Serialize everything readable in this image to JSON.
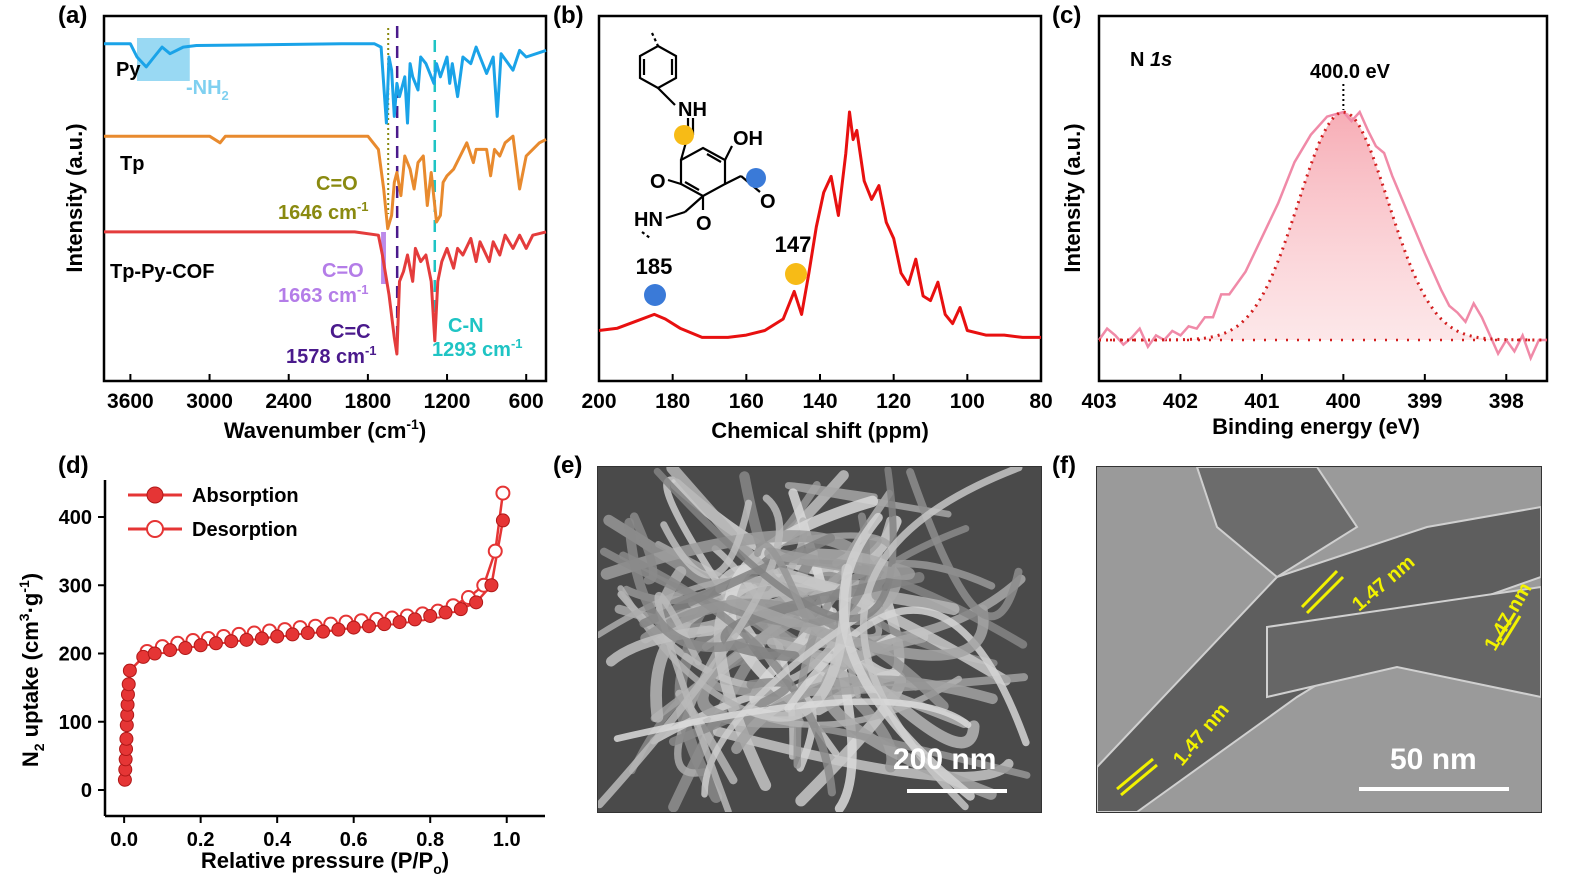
{
  "panel_labels": {
    "a": "(a)",
    "b": "(b)",
    "c": "(c)",
    "d": "(d)",
    "e": "(e)",
    "f": "(f)"
  },
  "colors": {
    "py": "#1aa3e8",
    "tp": "#e88a2e",
    "cof": "#e43c3c",
    "nmr": "#e81010",
    "xps_fit": "#f08aa8",
    "xps_dot": "#d21e1e",
    "iso": "#e53535",
    "co_tp": "#8a8a10",
    "co_cof": "#b47de8",
    "cc": "#4a1a8c",
    "cn": "#1fc4c4",
    "nh2": "#7fd0f0",
    "yellow_dot": "#f7bb16",
    "blue_dot": "#3a7ad8",
    "lattice": "#f2f200"
  },
  "chart_data": [
    {
      "panel": "a",
      "type": "line",
      "xlabel": "Wavenumber (cm",
      "xlabel_sup": "-1",
      "xlabel_end": ")",
      "ylabel": "Intensity (a.u.)",
      "xlim": [
        3800,
        450
      ],
      "xticks": [
        3600,
        3000,
        2400,
        1800,
        1200,
        600
      ],
      "series": [
        {
          "name": "Py",
          "points": [
            [
              3800,
              0.06
            ],
            [
              3600,
              0.06
            ],
            [
              3550,
              0.1
            ],
            [
              3480,
              0.13
            ],
            [
              3420,
              0.1
            ],
            [
              3360,
              0.07
            ],
            [
              3300,
              0.09
            ],
            [
              3200,
              0.07
            ],
            [
              3100,
              0.065
            ],
            [
              2000,
              0.06
            ],
            [
              1750,
              0.06
            ],
            [
              1700,
              0.07
            ],
            [
              1660,
              0.3
            ],
            [
              1640,
              0.1
            ],
            [
              1620,
              0.14
            ],
            [
              1600,
              0.28
            ],
            [
              1580,
              0.18
            ],
            [
              1560,
              0.22
            ],
            [
              1520,
              0.16
            ],
            [
              1500,
              0.3
            ],
            [
              1480,
              0.12
            ],
            [
              1460,
              0.16
            ],
            [
              1420,
              0.2
            ],
            [
              1400,
              0.1
            ],
            [
              1360,
              0.12
            ],
            [
              1300,
              0.18
            ],
            [
              1280,
              0.12
            ],
            [
              1250,
              0.16
            ],
            [
              1200,
              0.1
            ],
            [
              1180,
              0.18
            ],
            [
              1160,
              0.12
            ],
            [
              1120,
              0.22
            ],
            [
              1080,
              0.1
            ],
            [
              1020,
              0.12
            ],
            [
              980,
              0.07
            ],
            [
              900,
              0.15
            ],
            [
              850,
              0.1
            ],
            [
              820,
              0.28
            ],
            [
              790,
              0.09
            ],
            [
              700,
              0.14
            ],
            [
              650,
              0.08
            ],
            [
              600,
              0.1
            ],
            [
              450,
              0.08
            ]
          ]
        },
        {
          "name": "Tp",
          "points": [
            [
              3800,
              0.34
            ],
            [
              3000,
              0.34
            ],
            [
              2920,
              0.36
            ],
            [
              2880,
              0.34
            ],
            [
              1800,
              0.34
            ],
            [
              1720,
              0.38
            ],
            [
              1680,
              0.5
            ],
            [
              1650,
              0.62
            ],
            [
              1620,
              0.58
            ],
            [
              1600,
              0.48
            ],
            [
              1580,
              0.45
            ],
            [
              1550,
              0.52
            ],
            [
              1520,
              0.4
            ],
            [
              1480,
              0.44
            ],
            [
              1450,
              0.5
            ],
            [
              1420,
              0.42
            ],
            [
              1380,
              0.4
            ],
            [
              1350,
              0.55
            ],
            [
              1320,
              0.45
            ],
            [
              1280,
              0.6
            ],
            [
              1250,
              0.58
            ],
            [
              1230,
              0.48
            ],
            [
              1200,
              0.46
            ],
            [
              1150,
              0.44
            ],
            [
              1100,
              0.4
            ],
            [
              1050,
              0.36
            ],
            [
              1000,
              0.42
            ],
            [
              980,
              0.38
            ],
            [
              900,
              0.38
            ],
            [
              870,
              0.46
            ],
            [
              840,
              0.38
            ],
            [
              800,
              0.4
            ],
            [
              760,
              0.36
            ],
            [
              700,
              0.34
            ],
            [
              650,
              0.5
            ],
            [
              600,
              0.4
            ],
            [
              500,
              0.36
            ],
            [
              450,
              0.35
            ]
          ]
        },
        {
          "name": "Tp-Py-COF",
          "points": [
            [
              3800,
              0.63
            ],
            [
              1900,
              0.63
            ],
            [
              1720,
              0.64
            ],
            [
              1690,
              0.7
            ],
            [
              1640,
              0.82
            ],
            [
              1600,
              0.95
            ],
            [
              1580,
              1.0
            ],
            [
              1560,
              0.78
            ],
            [
              1530,
              0.75
            ],
            [
              1500,
              0.7
            ],
            [
              1460,
              0.78
            ],
            [
              1440,
              0.68
            ],
            [
              1400,
              0.72
            ],
            [
              1360,
              0.7
            ],
            [
              1320,
              0.78
            ],
            [
              1293,
              0.96
            ],
            [
              1270,
              0.78
            ],
            [
              1240,
              0.72
            ],
            [
              1200,
              0.68
            ],
            [
              1150,
              0.74
            ],
            [
              1120,
              0.68
            ],
            [
              1080,
              0.7
            ],
            [
              1020,
              0.65
            ],
            [
              980,
              0.72
            ],
            [
              950,
              0.66
            ],
            [
              880,
              0.72
            ],
            [
              850,
              0.66
            ],
            [
              800,
              0.7
            ],
            [
              760,
              0.64
            ],
            [
              700,
              0.68
            ],
            [
              650,
              0.64
            ],
            [
              600,
              0.68
            ],
            [
              550,
              0.64
            ],
            [
              450,
              0.63
            ]
          ]
        }
      ],
      "series_labels": [
        "Py",
        "Tp",
        "Tp-Py-COF"
      ],
      "annotations": [
        {
          "text": "-NH",
          "sub": "2"
        },
        {
          "text": "C=O"
        },
        {
          "text": "1646 cm",
          "sup": "-1"
        },
        {
          "text": "C=O"
        },
        {
          "text": "1663 cm",
          "sup": "-1"
        },
        {
          "text": "C=C"
        },
        {
          "text": "1578 cm",
          "sup": "-1"
        },
        {
          "text": "C-N"
        },
        {
          "text": "1293 cm",
          "sup": "-1"
        }
      ],
      "reference_lines": [
        1646,
        1578,
        1293
      ]
    },
    {
      "panel": "b",
      "type": "line",
      "xlabel": "Chemical shift (ppm)",
      "xlim": [
        200,
        80
      ],
      "xticks": [
        200,
        180,
        160,
        140,
        120,
        100,
        80
      ],
      "peak_labels": [
        "185",
        "147"
      ],
      "structure_labels": [
        "NH",
        "OH",
        "O",
        "O",
        "HN",
        "O"
      ],
      "points": [
        [
          200,
          0.05
        ],
        [
          195,
          0.06
        ],
        [
          190,
          0.09
        ],
        [
          185,
          0.12
        ],
        [
          182,
          0.1
        ],
        [
          178,
          0.06
        ],
        [
          172,
          0.02
        ],
        [
          165,
          0.02
        ],
        [
          160,
          0.03
        ],
        [
          155,
          0.05
        ],
        [
          150,
          0.1
        ],
        [
          147,
          0.22
        ],
        [
          145,
          0.12
        ],
        [
          143,
          0.3
        ],
        [
          141,
          0.5
        ],
        [
          139,
          0.65
        ],
        [
          137,
          0.72
        ],
        [
          135,
          0.55
        ],
        [
          133,
          0.82
        ],
        [
          132,
          1.0
        ],
        [
          131,
          0.88
        ],
        [
          130,
          0.92
        ],
        [
          128,
          0.7
        ],
        [
          126,
          0.62
        ],
        [
          124,
          0.68
        ],
        [
          122,
          0.52
        ],
        [
          120,
          0.45
        ],
        [
          118,
          0.3
        ],
        [
          116,
          0.25
        ],
        [
          114,
          0.36
        ],
        [
          112,
          0.2
        ],
        [
          110,
          0.18
        ],
        [
          108,
          0.26
        ],
        [
          106,
          0.12
        ],
        [
          104,
          0.08
        ],
        [
          102,
          0.15
        ],
        [
          100,
          0.05
        ],
        [
          95,
          0.03
        ],
        [
          90,
          0.03
        ],
        [
          85,
          0.02
        ],
        [
          80,
          0.02
        ]
      ]
    },
    {
      "panel": "c",
      "type": "line",
      "xlabel": "Binding energy  (eV)",
      "ylabel": "Intensity (a.u.)",
      "title": "N 1s",
      "peak_label": "400.0 eV",
      "xlim": [
        403,
        397.5
      ],
      "xticks": [
        403,
        402,
        401,
        400,
        399,
        398
      ],
      "peak_center": 400.0,
      "fit_sigma": 0.55,
      "raw": [
        [
          403,
          0.0
        ],
        [
          402.9,
          0.05
        ],
        [
          402.8,
          0.02
        ],
        [
          402.7,
          -0.02
        ],
        [
          402.6,
          0.01
        ],
        [
          402.5,
          0.05
        ],
        [
          402.4,
          -0.03
        ],
        [
          402.3,
          0.02
        ],
        [
          402.2,
          0.0
        ],
        [
          402.1,
          0.04
        ],
        [
          402.0,
          0.02
        ],
        [
          401.9,
          0.06
        ],
        [
          401.8,
          0.05
        ],
        [
          401.7,
          0.1
        ],
        [
          401.6,
          0.1
        ],
        [
          401.5,
          0.2
        ],
        [
          401.4,
          0.2
        ],
        [
          401.2,
          0.3
        ],
        [
          401.0,
          0.45
        ],
        [
          400.8,
          0.6
        ],
        [
          400.6,
          0.78
        ],
        [
          400.4,
          0.9
        ],
        [
          400.2,
          0.98
        ],
        [
          400.0,
          1.0
        ],
        [
          399.9,
          0.96
        ],
        [
          399.8,
          1.0
        ],
        [
          399.7,
          0.92
        ],
        [
          399.6,
          0.85
        ],
        [
          399.5,
          0.82
        ],
        [
          399.4,
          0.72
        ],
        [
          399.2,
          0.55
        ],
        [
          399.0,
          0.38
        ],
        [
          398.8,
          0.22
        ],
        [
          398.7,
          0.15
        ],
        [
          398.6,
          0.12
        ],
        [
          398.5,
          0.08
        ],
        [
          398.4,
          0.16
        ],
        [
          398.3,
          0.1
        ],
        [
          398.2,
          0.02
        ],
        [
          398.1,
          -0.06
        ],
        [
          398.0,
          0.0
        ],
        [
          397.9,
          -0.05
        ],
        [
          397.8,
          0.02
        ],
        [
          397.7,
          -0.08
        ],
        [
          397.6,
          0.0
        ],
        [
          397.5,
          0.0
        ]
      ]
    },
    {
      "panel": "d",
      "type": "scatter",
      "xlabel": "Relative pressure (P/P",
      "xlabel_sub": "o",
      "xlabel_end": ")",
      "ylabel": "N",
      "ylabel_sub": "2",
      "ylabel_mid": " uptake (cm",
      "ylabel_sup": "3",
      "ylabel_mid2": "·g",
      "ylabel_sup2": "-1",
      "ylabel_end": ")",
      "xlim": [
        -0.05,
        1.1
      ],
      "ylim": [
        -20,
        460
      ],
      "xticks": [
        0.0,
        0.2,
        0.4,
        0.6,
        0.8,
        1.0
      ],
      "yticks": [
        0,
        100,
        200,
        300,
        400
      ],
      "series": [
        {
          "name": "Absorption",
          "marker": "filled",
          "x": [
            0.002,
            0.003,
            0.004,
            0.005,
            0.006,
            0.007,
            0.008,
            0.009,
            0.01,
            0.012,
            0.015,
            0.05,
            0.08,
            0.12,
            0.16,
            0.2,
            0.24,
            0.28,
            0.32,
            0.36,
            0.4,
            0.44,
            0.48,
            0.52,
            0.56,
            0.6,
            0.64,
            0.68,
            0.72,
            0.76,
            0.8,
            0.84,
            0.88,
            0.92,
            0.96,
            0.99
          ],
          "y": [
            15,
            30,
            45,
            60,
            75,
            95,
            110,
            125,
            140,
            155,
            175,
            195,
            200,
            205,
            208,
            212,
            215,
            218,
            220,
            222,
            225,
            228,
            230,
            232,
            235,
            238,
            240,
            243,
            246,
            250,
            255,
            260,
            265,
            275,
            300,
            395
          ]
        },
        {
          "name": "Desorption",
          "marker": "open",
          "x": [
            0.99,
            0.97,
            0.94,
            0.9,
            0.86,
            0.82,
            0.78,
            0.74,
            0.7,
            0.66,
            0.62,
            0.58,
            0.54,
            0.5,
            0.46,
            0.42,
            0.38,
            0.34,
            0.3,
            0.26,
            0.22,
            0.18,
            0.14,
            0.1,
            0.06
          ],
          "y": [
            435,
            350,
            300,
            282,
            270,
            262,
            258,
            255,
            252,
            250,
            248,
            246,
            243,
            240,
            238,
            235,
            233,
            230,
            228,
            225,
            222,
            219,
            215,
            210,
            203
          ]
        }
      ]
    }
  ],
  "images": [
    {
      "panel": "e",
      "kind": "SEM",
      "scale_bar": "200 nm"
    },
    {
      "panel": "f",
      "kind": "TEM",
      "scale_bar": "50 nm",
      "lattice_labels": [
        "1.47 nm",
        "1.47 nm",
        "1.47 nm"
      ]
    }
  ]
}
